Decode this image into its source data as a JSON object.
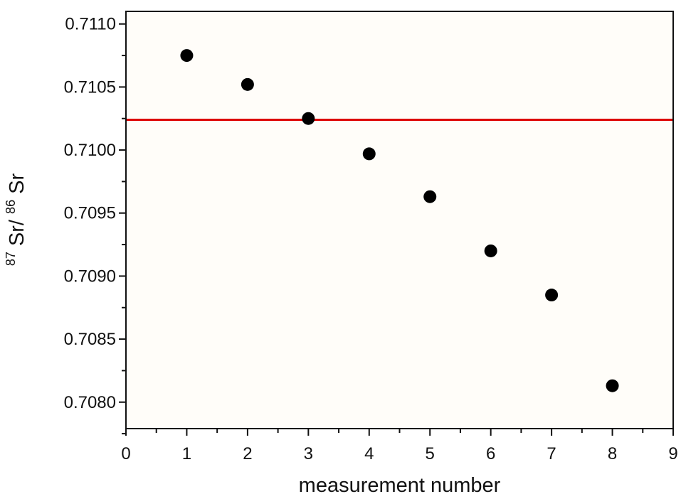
{
  "chart_data": {
    "type": "scatter",
    "title": "",
    "xlabel": "measurement number",
    "ylabel": {
      "sup1": "87",
      "main1": "Sr/",
      "sup2": "86",
      "main2": "Sr"
    },
    "x": [
      1,
      2,
      3,
      4,
      5,
      6,
      7,
      8
    ],
    "y": [
      0.71075,
      0.71052,
      0.71025,
      0.70997,
      0.70963,
      0.7092,
      0.70885,
      0.70813
    ],
    "xlim": [
      0,
      9
    ],
    "ylim": [
      0.70779,
      0.7111
    ],
    "xticks": [
      0,
      1,
      2,
      3,
      4,
      5,
      6,
      7,
      8,
      9
    ],
    "xtick_labels": [
      "0",
      "1",
      "2",
      "3",
      "4",
      "5",
      "6",
      "7",
      "8",
      "9"
    ],
    "yticks": [
      0.708,
      0.7085,
      0.709,
      0.7095,
      0.71,
      0.7105,
      0.711
    ],
    "ytick_labels": [
      "0.7080",
      "0.7085",
      "0.7090",
      "0.7095",
      "0.7100",
      "0.7105",
      "0.7110"
    ],
    "yminor_ticks": [
      0.70775,
      0.70825,
      0.70875,
      0.70925,
      0.70975,
      0.71025,
      0.71075
    ],
    "reference_line": {
      "y": 0.71024,
      "color": "#dd0000"
    },
    "marker_color": "#000000",
    "background_color": "#fffdf9",
    "grid": false,
    "legend": "none"
  }
}
